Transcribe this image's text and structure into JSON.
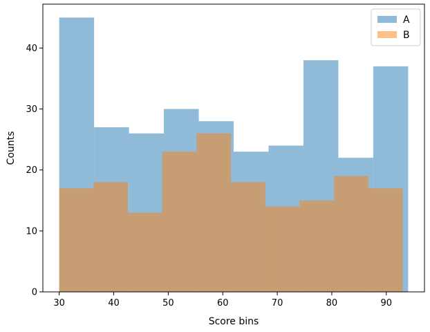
{
  "chart_data": {
    "type": "bar",
    "subtype": "histogram-overlay",
    "title": "",
    "xlabel": "Score bins",
    "ylabel": "Counts",
    "xlim": [
      27,
      97
    ],
    "ylim": [
      0,
      47.2
    ],
    "xticks": [
      30,
      40,
      50,
      60,
      70,
      80,
      90
    ],
    "yticks": [
      0,
      10,
      20,
      30,
      40
    ],
    "grid": false,
    "legend": {
      "position": "top-right"
    },
    "series": [
      {
        "name": "A",
        "color": "#1f77b4",
        "alpha": 0.5,
        "bin_edges": [
          30,
          36.4,
          42.8,
          49.2,
          55.6,
          62,
          68.4,
          74.8,
          81.2,
          87.6,
          94
        ],
        "counts": [
          45,
          27,
          26,
          30,
          28,
          23,
          24,
          38,
          22,
          37
        ]
      },
      {
        "name": "B",
        "color": "#ff7f0e",
        "alpha": 0.5,
        "bin_edges": [
          30,
          36.3,
          42.6,
          48.9,
          55.2,
          61.5,
          67.8,
          74.1,
          80.4,
          86.7,
          93
        ],
        "counts": [
          17,
          18,
          13,
          23,
          26,
          18,
          14,
          15,
          19,
          17
        ]
      }
    ]
  }
}
